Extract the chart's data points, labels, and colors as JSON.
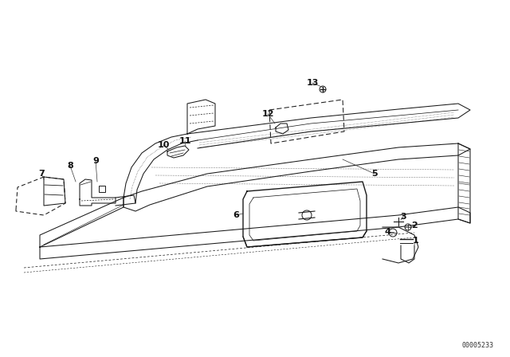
{
  "background_color": "#ffffff",
  "part_number": "00005233",
  "fig_width": 6.4,
  "fig_height": 4.48,
  "dpi": 100,
  "line_color": "#1a1a1a",
  "dot_color": "#555555"
}
